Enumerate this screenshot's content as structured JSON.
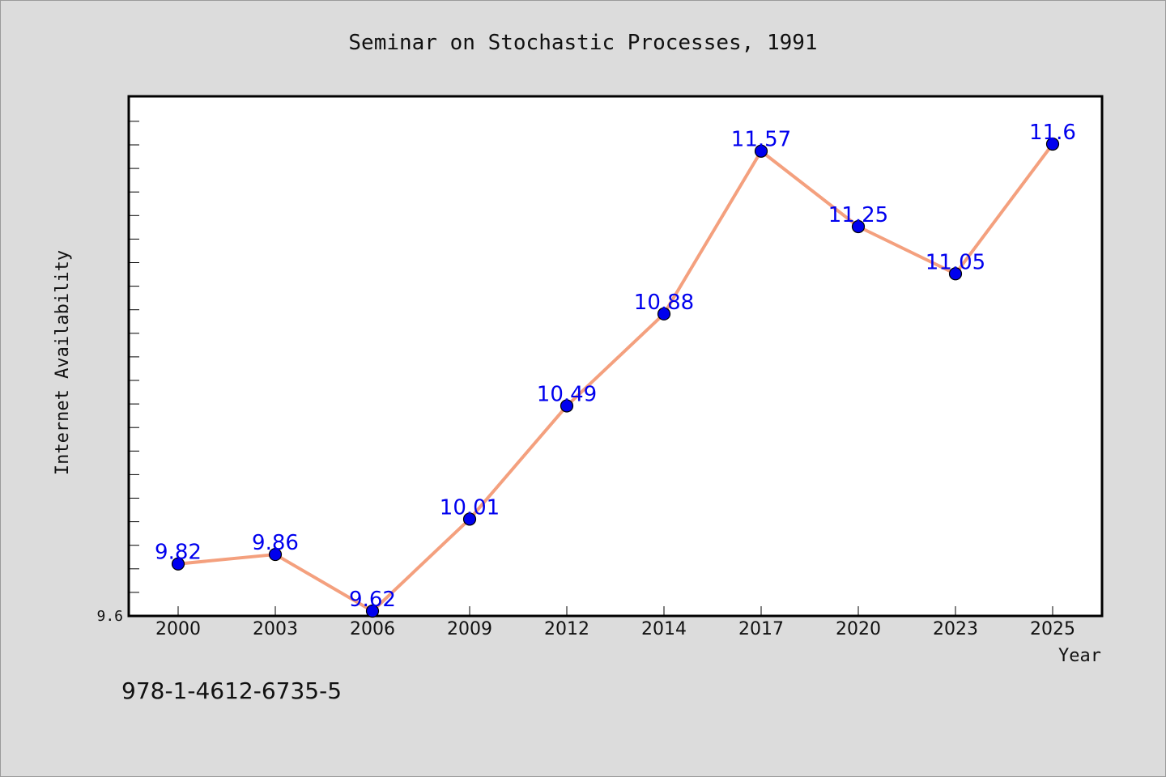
{
  "chart_data": {
    "type": "line",
    "title": "Seminar on Stochastic Processes, 1991",
    "xlabel": "Year",
    "ylabel": "Internet Availability",
    "categories": [
      "2000",
      "2003",
      "2006",
      "2009",
      "2012",
      "2014",
      "2017",
      "2020",
      "2023",
      "2025"
    ],
    "series": [
      {
        "values": [
          9.82,
          9.86,
          9.62,
          10.01,
          10.49,
          10.88,
          11.57,
          11.25,
          11.05,
          11.6
        ]
      }
    ],
    "data_labels": [
      "9.82",
      "9.86",
      "9.62",
      "10.01",
      "10.49",
      "10.88",
      "11.57",
      "11.25",
      "11.05",
      "11.6"
    ],
    "ylim": [
      9.6,
      11.8
    ],
    "yticks_labeled": [
      "9.6"
    ],
    "grid": false,
    "legend": "none",
    "colors": {
      "line": "#f4a07e",
      "marker": "#0000ee",
      "label": "#0000ee",
      "plot_background": "#ffffff",
      "page_background": "#dcdcdc"
    }
  },
  "footer": {
    "isbn": "978-1-4612-6735-5"
  }
}
